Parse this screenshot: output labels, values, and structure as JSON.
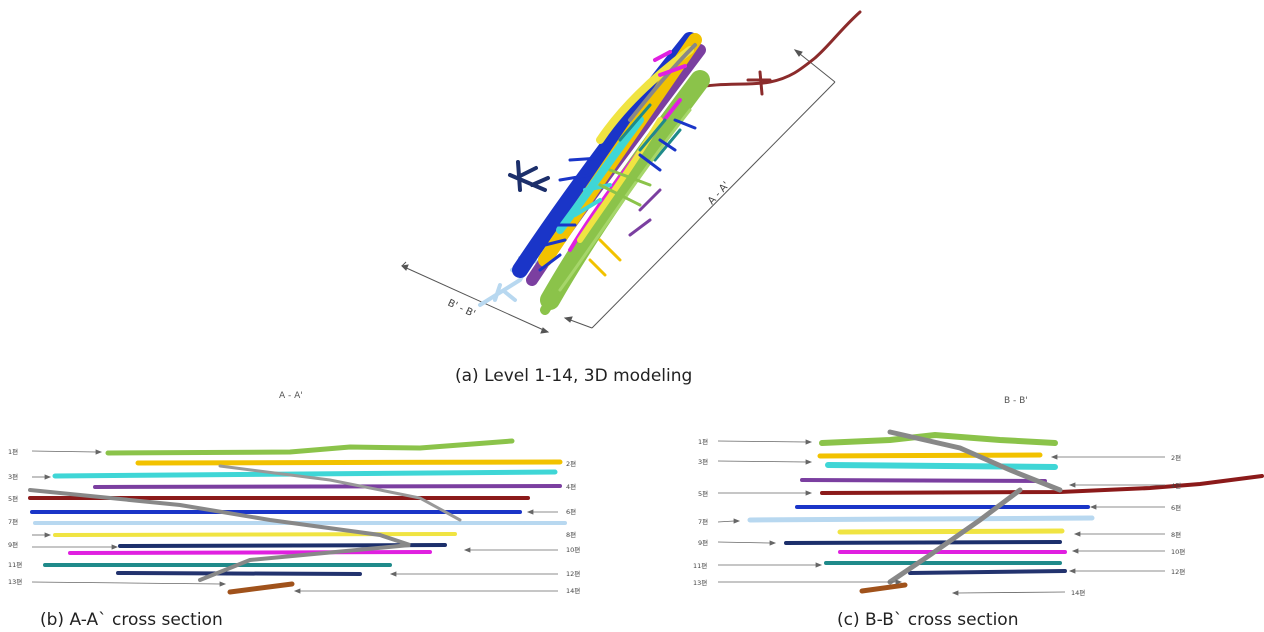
{
  "captions": {
    "a": "(a) Level 1-14, 3D modeling",
    "b": "(b) A-A` cross section",
    "c": "(c) B-B` cross section"
  },
  "section_titles": {
    "aa": "A - A'",
    "bb": "B - B'"
  },
  "dimension_labels": {
    "aa": "A - A'",
    "bb": "B' - B'"
  },
  "level_colors": {
    "1": "#8bc34a",
    "2": "#f2c200",
    "3": "#3fd6d6",
    "4": "#7b3fa0",
    "5": "#8b1a1a",
    "6": "#1a35c8",
    "7": "#b8d8f0",
    "8": "#f0e442",
    "9": "#1c2f6b",
    "10": "#e020e0",
    "11": "#1f8a8a",
    "12": "#23336e",
    "13": "#888888",
    "14": "#a0521b"
  },
  "aa_labels": {
    "left": [
      "1편",
      "3편",
      "5편",
      "7편",
      "9편",
      "11편",
      "13편"
    ],
    "right": [
      "2편",
      "4편",
      "6편",
      "8편",
      "10편",
      "12편",
      "14편"
    ]
  },
  "bb_labels": {
    "left": [
      "1편",
      "3편",
      "5편",
      "7편",
      "9편",
      "11편",
      "13편"
    ],
    "right": [
      "2편",
      "4편",
      "6편",
      "8편",
      "10편",
      "12편",
      "14편"
    ]
  }
}
